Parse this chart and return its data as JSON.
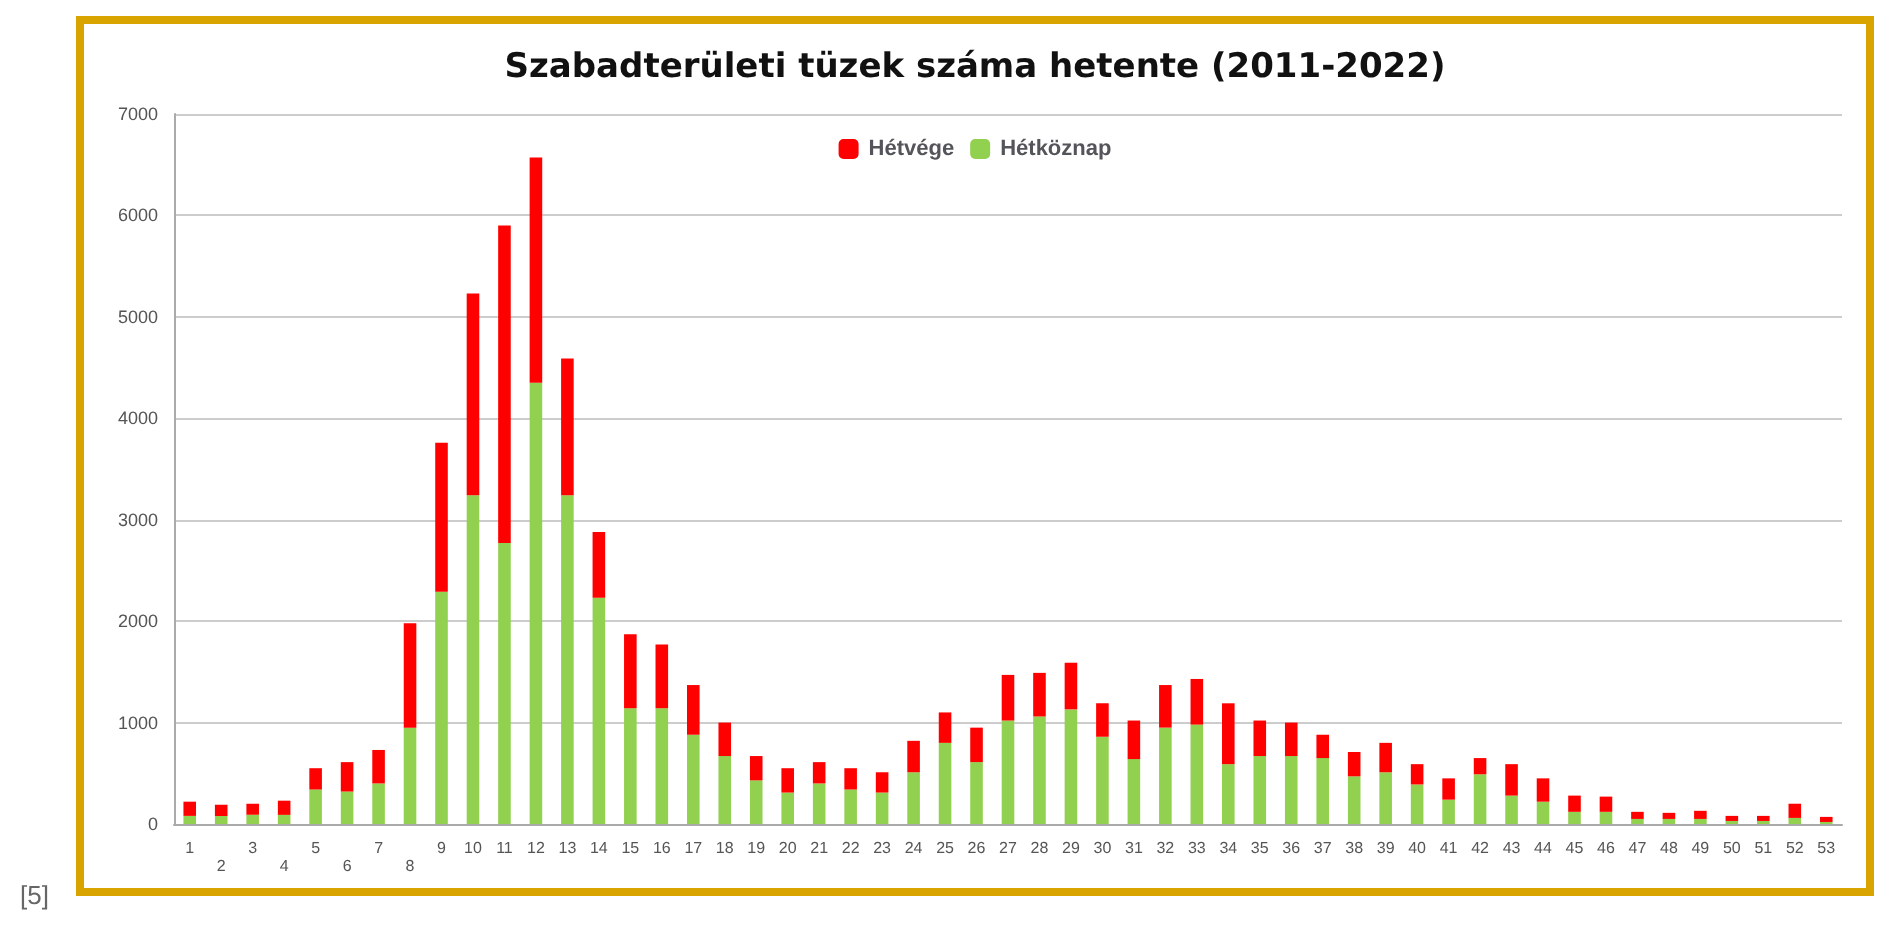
{
  "chart_data": {
    "type": "bar",
    "title": "Szabadterületi tüzek száma hetente (2011-2022)",
    "stacked": true,
    "legend": "top",
    "grid": "y",
    "ylim": [
      0,
      7000
    ],
    "yticks": [
      0,
      1000,
      2000,
      3000,
      4000,
      5000,
      6000,
      7000
    ],
    "categories": [
      "1",
      "2",
      "3",
      "4",
      "5",
      "6",
      "7",
      "8",
      "9",
      "10",
      "11",
      "12",
      "13",
      "14",
      "15",
      "16",
      "17",
      "18",
      "19",
      "20",
      "21",
      "22",
      "23",
      "24",
      "25",
      "26",
      "27",
      "28",
      "29",
      "30",
      "31",
      "32",
      "33",
      "34",
      "35",
      "36",
      "37",
      "38",
      "39",
      "40",
      "41",
      "42",
      "43",
      "44",
      "45",
      "46",
      "47",
      "48",
      "49",
      "50",
      "51",
      "52",
      "53"
    ],
    "series": [
      {
        "name": "Hétköznap",
        "color": "#92d050",
        "values": [
          80,
          80,
          90,
          90,
          340,
          320,
          400,
          950,
          2290,
          3240,
          2770,
          4350,
          3240,
          2230,
          1140,
          1140,
          880,
          670,
          430,
          310,
          400,
          340,
          310,
          510,
          800,
          610,
          1020,
          1060,
          1130,
          860,
          640,
          950,
          980,
          590,
          670,
          670,
          650,
          470,
          510,
          390,
          240,
          490,
          280,
          220,
          120,
          120,
          50,
          50,
          50,
          30,
          30,
          60,
          20
        ]
      },
      {
        "name": "Hétvége",
        "color": "#ff0000",
        "values": [
          140,
          110,
          110,
          140,
          210,
          290,
          330,
          1030,
          1470,
          1990,
          3130,
          2220,
          1350,
          650,
          730,
          630,
          490,
          330,
          240,
          240,
          210,
          210,
          200,
          310,
          300,
          340,
          450,
          430,
          460,
          330,
          380,
          420,
          450,
          600,
          350,
          330,
          230,
          240,
          290,
          200,
          210,
          160,
          310,
          230,
          160,
          150,
          70,
          60,
          80,
          50,
          50,
          140,
          50
        ]
      }
    ],
    "annotations": [
      "[5]"
    ]
  }
}
